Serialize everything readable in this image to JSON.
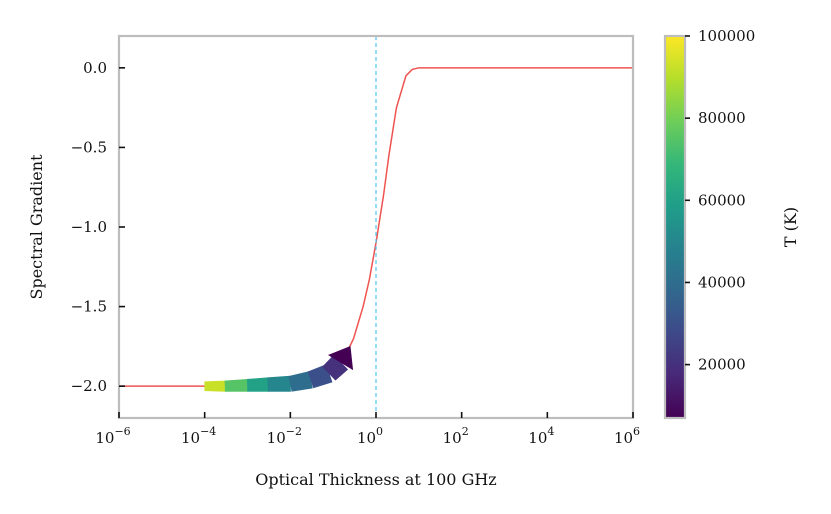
{
  "chart_data": {
    "type": "line",
    "xlabel": "Optical Thickness at 100 GHz",
    "ylabel": "Spectral Gradient",
    "xscale": "log",
    "xlim": [
      1e-06,
      1000000.0
    ],
    "ylim": [
      -2.2,
      0.2
    ],
    "x_ticks": [
      {
        "value": 1e-06,
        "base": "10",
        "exp": "−6"
      },
      {
        "value": 0.0001,
        "base": "10",
        "exp": "−4"
      },
      {
        "value": 0.01,
        "base": "10",
        "exp": "−2"
      },
      {
        "value": 1,
        "base": "10",
        "exp": "0"
      },
      {
        "value": 100,
        "base": "10",
        "exp": "2"
      },
      {
        "value": 10000.0,
        "base": "10",
        "exp": "4"
      },
      {
        "value": 1000000.0,
        "base": "10",
        "exp": "6"
      }
    ],
    "y_ticks": [
      {
        "value": 0.0,
        "label": "0.0"
      },
      {
        "value": -0.5,
        "label": "−0.5"
      },
      {
        "value": -1.0,
        "label": "−1.0"
      },
      {
        "value": -1.5,
        "label": "−1.5"
      },
      {
        "value": -2.0,
        "label": "−2.0"
      }
    ],
    "series": [
      {
        "name": "spectral gradient",
        "color": "#ef5350",
        "x": [
          1e-06,
          1e-05,
          0.0001,
          0.001,
          0.01,
          0.03,
          0.1,
          0.2,
          0.3,
          0.5,
          0.7,
          1.0,
          1.5,
          2.0,
          3.0,
          5.0,
          7.0,
          10.0,
          100.0,
          10000.0,
          1000000.0
        ],
        "y": [
          -2.0,
          -2.0,
          -2.0,
          -1.995,
          -1.985,
          -1.965,
          -1.9,
          -1.8,
          -1.7,
          -1.5,
          -1.33,
          -1.1,
          -0.8,
          -0.55,
          -0.25,
          -0.05,
          -0.01,
          0.0,
          0.0,
          0.0,
          0.0
        ]
      }
    ],
    "vline": {
      "x": 1.0,
      "color": "#4fc3f7",
      "style": "dashed"
    },
    "arrow": {
      "x": [
        0.0001,
        0.0003,
        0.001,
        0.003,
        0.01,
        0.03,
        0.08,
        0.15,
        0.25
      ],
      "y": [
        -2.0,
        -2.0,
        -1.995,
        -1.99,
        -1.985,
        -1.96,
        -1.92,
        -1.85,
        -1.75
      ],
      "T": [
        100000,
        85000,
        65000,
        55000,
        45000,
        35000,
        25000,
        15000,
        7000
      ]
    },
    "colorbar": {
      "label": "T (K)",
      "min": 7000,
      "max": 100000,
      "ticks": [
        {
          "value": 20000,
          "label": "20000"
        },
        {
          "value": 40000,
          "label": "40000"
        },
        {
          "value": 60000,
          "label": "60000"
        },
        {
          "value": 80000,
          "label": "80000"
        },
        {
          "value": 100000,
          "label": "100000"
        }
      ],
      "colormap": "viridis",
      "stops": [
        "#440154",
        "#482878",
        "#3e4989",
        "#31688e",
        "#26828e",
        "#1f9e89",
        "#35b779",
        "#6ece58",
        "#b5de2b",
        "#fde725"
      ]
    },
    "frame_color": "#bdbdbd"
  }
}
